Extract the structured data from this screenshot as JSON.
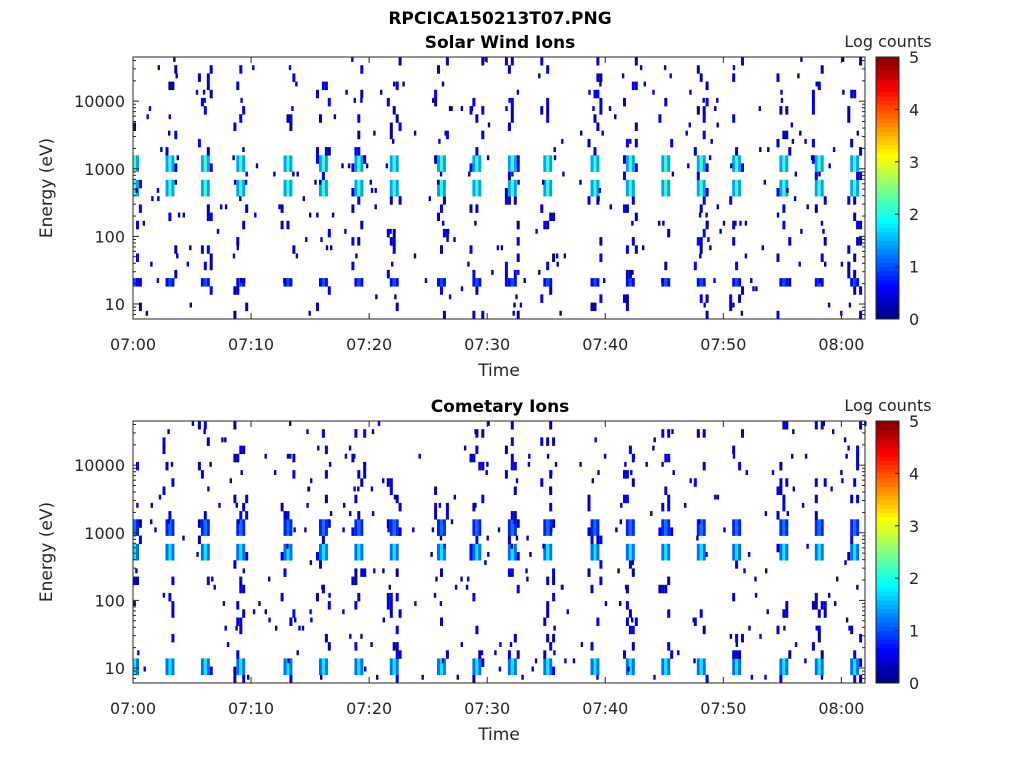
{
  "figure_title": "RPCICA150213T07.PNG",
  "colorbar": {
    "label": "Log counts",
    "ticks": [
      "0",
      "1",
      "2",
      "3",
      "4",
      "5"
    ],
    "range": [
      0,
      5
    ],
    "colormap": "jet"
  },
  "chart_data": [
    {
      "type": "heatmap",
      "title": "Solar Wind Ions",
      "xlabel": "Time",
      "ylabel": "Energy (eV)",
      "xticks": [
        "07:00",
        "07:10",
        "07:20",
        "07:30",
        "07:40",
        "07:50",
        "08:00"
      ],
      "yticks": [
        "10",
        "100",
        "1000",
        "10000"
      ],
      "xlim": [
        "07:00",
        "08:02"
      ],
      "ylim": [
        6,
        45000
      ],
      "yscale": "log",
      "zlim": [
        0,
        5
      ],
      "peak_energy_bands_eV": [
        {
          "energy": 1200,
          "log_counts": 2.2
        },
        {
          "energy": 550,
          "log_counts": 2.2
        },
        {
          "energy": 20,
          "log_counts": 1.0
        }
      ],
      "pulse_times": [
        "07:00",
        "07:03",
        "07:06",
        "07:09",
        "07:13",
        "07:16",
        "07:19",
        "07:22",
        "07:26",
        "07:29",
        "07:32",
        "07:35",
        "07:39",
        "07:42",
        "07:45",
        "07:48",
        "07:51",
        "07:55",
        "07:58",
        "08:01"
      ]
    },
    {
      "type": "heatmap",
      "title": "Cometary Ions",
      "xlabel": "Time",
      "ylabel": "Energy (eV)",
      "xticks": [
        "07:00",
        "07:10",
        "07:20",
        "07:30",
        "07:40",
        "07:50",
        "08:00"
      ],
      "yticks": [
        "10",
        "100",
        "1000",
        "10000"
      ],
      "xlim": [
        "07:00",
        "08:02"
      ],
      "ylim": [
        6,
        45000
      ],
      "yscale": "log",
      "zlim": [
        0,
        5
      ],
      "peak_energy_bands_eV": [
        {
          "energy": 550,
          "log_counts": 1.8
        },
        {
          "energy": 1200,
          "log_counts": 1.2
        },
        {
          "energy": 10,
          "log_counts": 1.8
        }
      ],
      "pulse_times": [
        "07:00",
        "07:03",
        "07:06",
        "07:09",
        "07:13",
        "07:16",
        "07:19",
        "07:22",
        "07:26",
        "07:29",
        "07:32",
        "07:35",
        "07:39",
        "07:42",
        "07:45",
        "07:48",
        "07:51",
        "07:55",
        "07:58",
        "08:01"
      ]
    }
  ]
}
